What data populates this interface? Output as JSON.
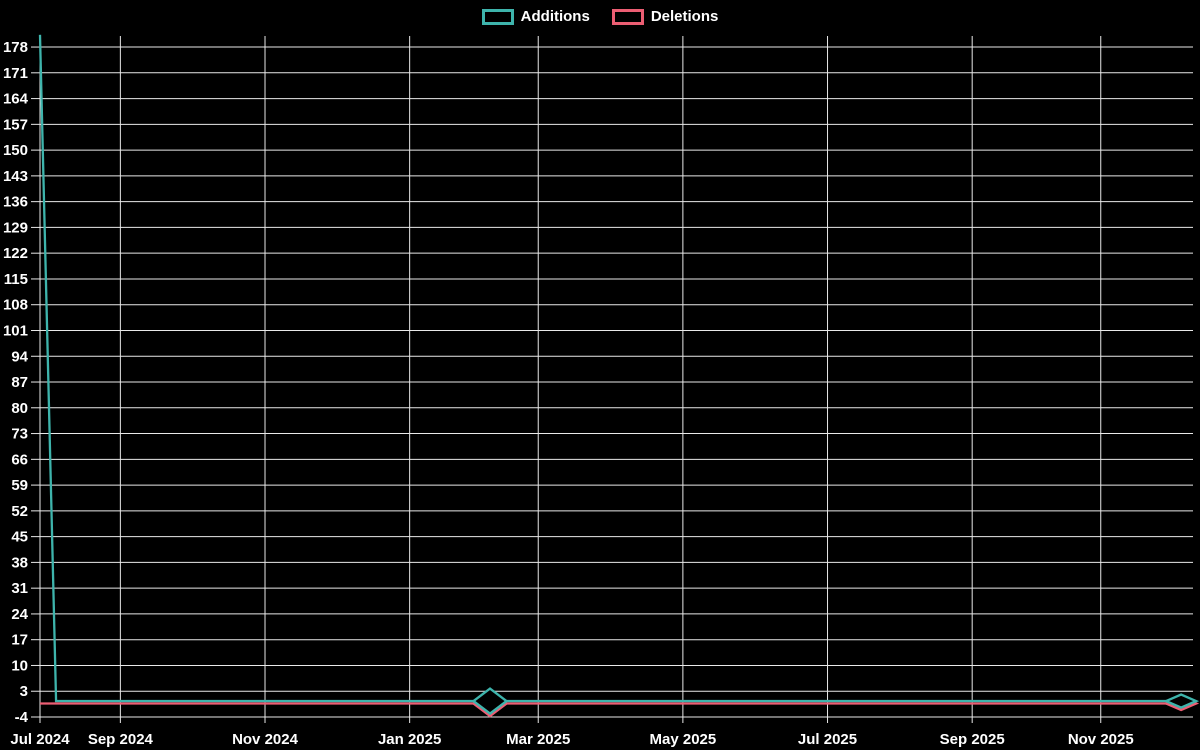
{
  "chart": {
    "background": "#000000",
    "text_color": "#ffffff",
    "gridline_color": "#e9e9e9",
    "legend": [
      {
        "label": "Additions",
        "color": "#3eb4ac"
      },
      {
        "label": "Deletions",
        "color": "#ec5e73"
      }
    ]
  },
  "chart_data": {
    "type": "line",
    "title": "",
    "xlabel": "",
    "ylabel": "",
    "grid": true,
    "legend_position": "top-center",
    "x_unit": "week",
    "x_range_note": "weekly points from week of 2024-07-28 through week of 2025-12-07",
    "ylim": [
      -4,
      181
    ],
    "y_tick_step": 7,
    "y_ticks": [
      -4,
      3,
      10,
      17,
      24,
      31,
      38,
      45,
      52,
      59,
      66,
      73,
      80,
      87,
      94,
      101,
      108,
      115,
      122,
      129,
      136,
      143,
      150,
      157,
      164,
      171,
      178
    ],
    "x_ticks": [
      {
        "label": "Jul 2024",
        "date": "2024-07-28"
      },
      {
        "label": "Sep 2024",
        "date": "2024-09-01"
      },
      {
        "label": "Nov 2024",
        "date": "2024-11-03"
      },
      {
        "label": "Jan 2025",
        "date": "2025-01-05"
      },
      {
        "label": "Mar 2025",
        "date": "2025-03-02"
      },
      {
        "label": "May 2025",
        "date": "2025-05-04"
      },
      {
        "label": "Jul 2025",
        "date": "2025-07-06"
      },
      {
        "label": "Sep 2025",
        "date": "2025-09-07"
      },
      {
        "label": "Nov 2025",
        "date": "2025-11-02"
      }
    ],
    "series": [
      {
        "name": "Additions",
        "color": "#3eb4ac",
        "points": [
          [
            "2024-07-28",
            181
          ],
          [
            "2024-08-04",
            0
          ],
          [
            "2025-12-07",
            0
          ]
        ],
        "note": "181 additions in first week; 0 for every following week through 2025-12-07 (flat line at 0)"
      },
      {
        "name": "Deletions",
        "color": "#ec5e73",
        "points": [
          [
            "2024-07-28",
            0
          ],
          [
            "2025-12-07",
            0
          ]
        ],
        "note": "0 deletions for all weeks (flat line at 0)"
      }
    ],
    "markers": [
      {
        "date": "2025-02-09",
        "value": 0,
        "shape": "diamond",
        "top_color": "#3eb4ac",
        "bottom_color": "#ec5e73",
        "size": "large"
      },
      {
        "date": "2025-12-07",
        "value": 0,
        "shape": "diamond",
        "top_color": "#3eb4ac",
        "bottom_color": "#ec5e73",
        "size": "small"
      }
    ]
  }
}
